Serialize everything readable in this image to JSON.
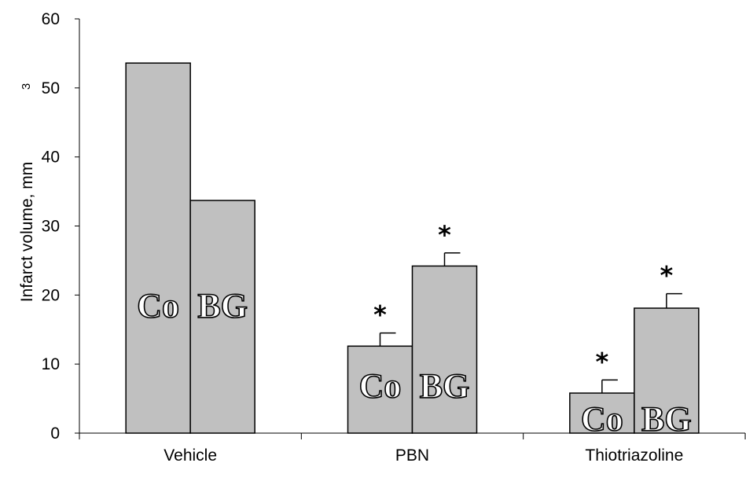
{
  "chart_data": {
    "type": "bar",
    "ylabel": "Infarct volume, mm",
    "ylabel_superscript": "3",
    "ylim": [
      0,
      60
    ],
    "yticks": [
      0,
      10,
      20,
      30,
      40,
      50,
      60
    ],
    "grid": false,
    "legend": "none",
    "categories": [
      "Vehicle",
      "PBN",
      "Thiotriazoline"
    ],
    "series": [
      {
        "name": "Co",
        "values": [
          53.6,
          12.6,
          5.8
        ],
        "errors": [
          null,
          1.9,
          1.9
        ],
        "significance": [
          "",
          "*",
          "*"
        ]
      },
      {
        "name": "BG",
        "values": [
          33.7,
          24.2,
          18.1
        ],
        "errors": [
          null,
          1.9,
          2.1
        ],
        "significance": [
          "",
          "*",
          "*"
        ]
      }
    ],
    "bar_color": "#c0c0c0"
  }
}
